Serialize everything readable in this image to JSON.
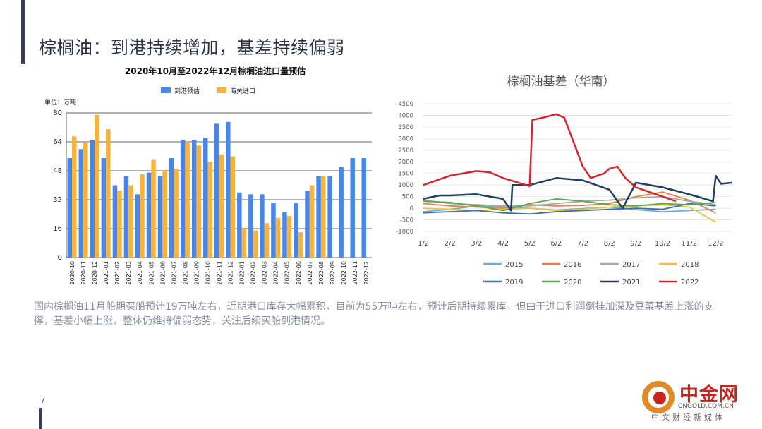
{
  "page": {
    "title": "棕榈油：到港持续增加，基差持续偏弱",
    "body_text": "国内棕榈油11月船期买船预计19万吨左右，近期港口库存大幅累积，目前为55万吨左右，预计后期持续累库。但由于进口利润倒挂加深及豆菜基差上涨的支撑，基差小幅上涨，整体仍维持偏弱态势，关注后续买船到港情况。",
    "page_number": "7"
  },
  "logo": {
    "name": "中金网",
    "site": "CNGOLD.COM.CN",
    "tagline": "中文财经新媒体"
  },
  "colors": {
    "accent": "#3a3f58",
    "blue": "#4a86e8",
    "orange": "#f6b33e",
    "red": "#d9232a"
  },
  "chart_data": [
    {
      "type": "bar",
      "title": "2020年10月至2022年12月棕榈油进口量预估",
      "unit": "单位：万吨",
      "categories": [
        "2020-10",
        "2020-11",
        "2020-12",
        "2021-01",
        "2021-02",
        "2021-03",
        "2021-04",
        "2021-05",
        "2021-06",
        "2021-07",
        "2021-08",
        "2021-09",
        "2021-10",
        "2021-11",
        "2021-12",
        "2022-01",
        "2022-02",
        "2022-03",
        "2022-04",
        "2022-05",
        "2022-06",
        "2022-07",
        "2022-08",
        "2022-09",
        "2022-10",
        "2022-11",
        "2022-12"
      ],
      "series": [
        {
          "name": "到港预估",
          "values": [
            55,
            60,
            65,
            55,
            40,
            45,
            35,
            47,
            45,
            55,
            65,
            65,
            66,
            74,
            75,
            36,
            35,
            35,
            30,
            25,
            30,
            37,
            45,
            45,
            50,
            55,
            55
          ]
        },
        {
          "name": "海关进口",
          "values": [
            67,
            64,
            79,
            71,
            37,
            40,
            46,
            54,
            48,
            49,
            64,
            62,
            53,
            57,
            56,
            16,
            15,
            19,
            22,
            23,
            14,
            40,
            45,
            null,
            null,
            null,
            null
          ]
        }
      ],
      "yticks": [
        0,
        16,
        32,
        48,
        64,
        80
      ],
      "ylim": [
        0,
        80
      ]
    },
    {
      "type": "line",
      "title": "棕榈油基差（华南）",
      "xticks": [
        "1/2",
        "2/2",
        "3/2",
        "4/2",
        "5/2",
        "6/2",
        "7/2",
        "8/2",
        "9/2",
        "10/2",
        "11/2",
        "12/2"
      ],
      "yticks": [
        -1000,
        -500,
        0,
        500,
        1000,
        1500,
        2000,
        2500,
        3000,
        3500,
        4000,
        4500
      ],
      "ylim": [
        -1000,
        4500
      ],
      "xlim": [
        1,
        12.6
      ],
      "series": [
        {
          "name": "2015",
          "color": "#6aaed6",
          "points": [
            [
              1,
              -150
            ],
            [
              2,
              -50
            ],
            [
              3,
              100
            ],
            [
              4,
              50
            ],
            [
              5,
              0
            ],
            [
              6,
              -80
            ],
            [
              7,
              -20
            ],
            [
              8,
              50
            ],
            [
              9,
              -60
            ],
            [
              10,
              -150
            ],
            [
              11,
              -100
            ],
            [
              12,
              -50
            ]
          ]
        },
        {
          "name": "2016",
          "color": "#e8803a",
          "points": [
            [
              1,
              200
            ],
            [
              2,
              100
            ],
            [
              3,
              50
            ],
            [
              4,
              0
            ],
            [
              5,
              150
            ],
            [
              6,
              100
            ],
            [
              7,
              120
            ],
            [
              8,
              200
            ],
            [
              9,
              500
            ],
            [
              10,
              700
            ],
            [
              11,
              350
            ],
            [
              12,
              -200
            ]
          ]
        },
        {
          "name": "2017",
          "color": "#a8a8a8",
          "points": [
            [
              1,
              350
            ],
            [
              2,
              200
            ],
            [
              3,
              150
            ],
            [
              4,
              100
            ],
            [
              5,
              100
            ],
            [
              6,
              200
            ],
            [
              7,
              300
            ],
            [
              8,
              350
            ],
            [
              9,
              450
            ],
            [
              10,
              500
            ],
            [
              11,
              300
            ],
            [
              12,
              150
            ]
          ]
        },
        {
          "name": "2018",
          "color": "#f2c233",
          "points": [
            [
              1,
              0
            ],
            [
              2,
              -50
            ],
            [
              3,
              -100
            ],
            [
              4,
              -50
            ],
            [
              5,
              0
            ],
            [
              6,
              -100
            ],
            [
              7,
              -50
            ],
            [
              8,
              50
            ],
            [
              9,
              100
            ],
            [
              10,
              150
            ],
            [
              11,
              50
            ],
            [
              12,
              -600
            ]
          ]
        },
        {
          "name": "2019",
          "color": "#3e6fa8",
          "points": [
            [
              1,
              -200
            ],
            [
              2,
              -150
            ],
            [
              3,
              -100
            ],
            [
              4,
              -200
            ],
            [
              5,
              -250
            ],
            [
              6,
              -150
            ],
            [
              7,
              -100
            ],
            [
              8,
              -50
            ],
            [
              9,
              0
            ],
            [
              10,
              -50
            ],
            [
              11,
              200
            ],
            [
              12,
              100
            ]
          ]
        },
        {
          "name": "2020",
          "color": "#56a84a",
          "points": [
            [
              1,
              300
            ],
            [
              2,
              250
            ],
            [
              3,
              100
            ],
            [
              4,
              -100
            ],
            [
              5,
              200
            ],
            [
              6,
              400
            ],
            [
              7,
              300
            ],
            [
              8,
              150
            ],
            [
              9,
              100
            ],
            [
              10,
              200
            ],
            [
              11,
              150
            ],
            [
              12,
              250
            ]
          ]
        },
        {
          "name": "2021",
          "color": "#1f3d66",
          "points": [
            [
              1,
              400
            ],
            [
              1.6,
              550
            ],
            [
              2,
              550
            ],
            [
              3,
              600
            ],
            [
              4,
              400
            ],
            [
              4.3,
              -100
            ],
            [
              4.35,
              1000
            ],
            [
              5,
              1000
            ],
            [
              6,
              1300
            ],
            [
              7,
              1200
            ],
            [
              8,
              800
            ],
            [
              8.5,
              0
            ],
            [
              9,
              1100
            ],
            [
              10,
              900
            ],
            [
              11,
              600
            ],
            [
              11.9,
              300
            ],
            [
              12,
              1400
            ],
            [
              12.2,
              1050
            ],
            [
              12.6,
              1100
            ]
          ]
        },
        {
          "name": "2022",
          "color": "#d9232a",
          "points": [
            [
              1,
              1000
            ],
            [
              1.5,
              1200
            ],
            [
              2,
              1400
            ],
            [
              3,
              1600
            ],
            [
              3.5,
              1550
            ],
            [
              4,
              1300
            ],
            [
              5,
              950
            ],
            [
              5.1,
              3800
            ],
            [
              5.5,
              3900
            ],
            [
              6,
              4050
            ],
            [
              6.3,
              3900
            ],
            [
              6.6,
              3000
            ],
            [
              7,
              1800
            ],
            [
              7.3,
              1300
            ],
            [
              7.8,
              1500
            ],
            [
              8,
              1700
            ],
            [
              8.3,
              1800
            ],
            [
              8.6,
              1300
            ],
            [
              9,
              900
            ],
            [
              9.5,
              700
            ],
            [
              10,
              500
            ],
            [
              10.5,
              300
            ]
          ]
        }
      ]
    }
  ]
}
